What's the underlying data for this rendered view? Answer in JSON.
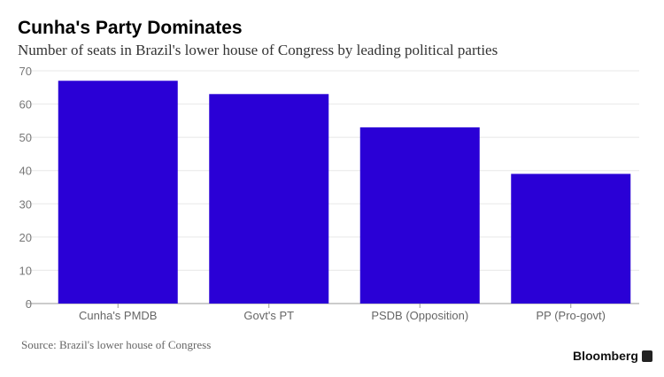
{
  "chart_data": {
    "type": "bar",
    "title": "Cunha's Party Dominates",
    "subtitle": "Number of seats in Brazil's lower house of Congress by leading political parties",
    "categories": [
      "Cunha's PMDB",
      "Govt's PT",
      "PSDB (Opposition)",
      "PP (Pro-govt)"
    ],
    "values": [
      67,
      63,
      53,
      39
    ],
    "xlabel": "",
    "ylabel": "",
    "ylim": [
      0,
      70
    ],
    "yticks": [
      0,
      10,
      20,
      30,
      40,
      50,
      60,
      70
    ],
    "grid": true,
    "bar_color": "#2a00d6"
  },
  "footer": {
    "source": "Source: Brazil's lower house of Congress",
    "brand": "Bloomberg"
  }
}
